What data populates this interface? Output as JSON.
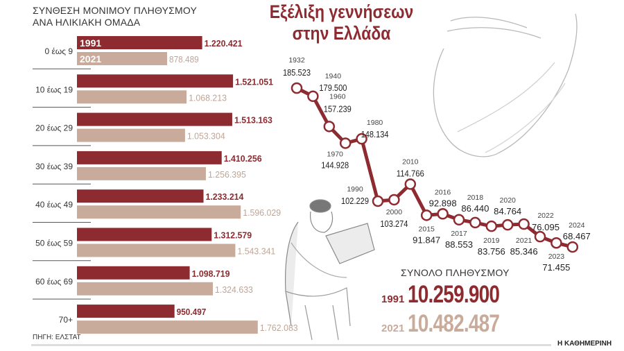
{
  "title": "Εξέλιξη γεννήσεων στην Ελλάδα",
  "title_lines": [
    "Εξέλιξη γεννήσεων",
    "στην Ελλάδα"
  ],
  "source": "ΠΗΓΗ: ΕΛΣΤΑΤ",
  "brand": "Η ΚΑΘΗΜΕΡΙΝΗ",
  "colors": {
    "series_1991": "#8e2b30",
    "series_2021": "#c9ab9c",
    "line": "#8e2b30"
  },
  "chart_data": [
    {
      "type": "bar",
      "orientation": "horizontal",
      "title": "ΣΥΝΘΕΣΗ ΜΟΝΙΜΟΥ ΠΛΗΘΥΣΜΟΥ ΑΝΑ ΗΛΙΚΙΑΚΗ ΟΜΑΔΑ",
      "title_lines": [
        "ΣΥΝΘΕΣΗ ΜΟΝΙΜΟΥ ΠΛΗΘΥΣΜΟΥ",
        "ΑΝΑ ΗΛΙΚΙΑΚΗ ΟΜΑΔΑ"
      ],
      "categories": [
        "0 έως 9",
        "10 έως 19",
        "20 έως 29",
        "30 έως 39",
        "40 έως 49",
        "50 έως 59",
        "60 έως 69",
        "70+"
      ],
      "series": [
        {
          "name": "1991",
          "values": [
            1220421,
            1521051,
            1513163,
            1410256,
            1233214,
            1312579,
            1098719,
            950497
          ],
          "labels": [
            "1.220.421",
            "1.521.051",
            "1.513.163",
            "1.410.256",
            "1.233.214",
            "1.312.579",
            "1.098.719",
            "950.497"
          ]
        },
        {
          "name": "2021",
          "values": [
            878489,
            1068213,
            1053304,
            1256395,
            1596029,
            1543341,
            1324633,
            1762083
          ],
          "labels": [
            "878.489",
            "1.068.213",
            "1.053.304",
            "1.256.395",
            "1.596.029",
            "1.543.341",
            "1.324.633",
            "1.762.083"
          ]
        }
      ],
      "legend": "inside-first-bars"
    },
    {
      "type": "line",
      "title": "Εξέλιξη γεννήσεων στην Ελλάδα",
      "x": [
        "1932",
        "1940",
        "1960",
        "1970",
        "1980",
        "1990",
        "2000",
        "2010",
        "2015",
        "2016",
        "2017",
        "2018",
        "2019",
        "2020",
        "2021",
        "2022",
        "2023",
        "2024"
      ],
      "y": [
        185523,
        179500,
        157239,
        144928,
        148134,
        102229,
        103274,
        114766,
        91847,
        92898,
        88553,
        86440,
        83756,
        84764,
        85346,
        76095,
        71455,
        68467
      ],
      "labels": [
        "185.523",
        "179.500",
        "157.239",
        "144.928",
        "148.134",
        "102.229",
        "103.274",
        "114.766",
        "91.847",
        "92.898",
        "88.553",
        "86.440",
        "83.756",
        "84.764",
        "85.346",
        "76.095",
        "71.455",
        "68.467"
      ],
      "axes": "none",
      "grid": false
    }
  ],
  "totals": {
    "label": "ΣΥΝΟΛΟ ΠΛΗΘΥΣΜΟΥ",
    "rows": [
      {
        "year": "1991",
        "value": "10.259.900"
      },
      {
        "year": "2021",
        "value": "10.482.487"
      }
    ]
  }
}
